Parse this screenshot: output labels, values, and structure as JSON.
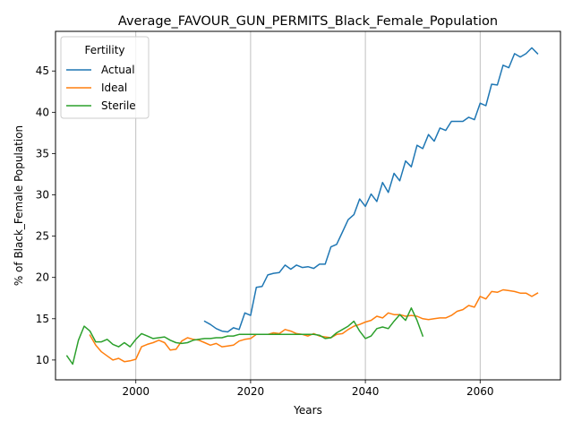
{
  "chart_data": {
    "type": "line",
    "title": "Average_FAVOUR_GUN_PERMITS_Black_Female_Population",
    "xlabel": "Years",
    "ylabel": "% of Black_Female Population",
    "xlim": [
      1986,
      2074
    ],
    "ylim": [
      7.6,
      49.8
    ],
    "xticks": [
      2000,
      2020,
      2040,
      2060
    ],
    "yticks": [
      10,
      15,
      20,
      25,
      30,
      35,
      40,
      45
    ],
    "grid": "vertical",
    "legend": {
      "title": "Fertility",
      "placement": "top-left"
    },
    "series": [
      {
        "name": "Actual",
        "color": "#1f77b4",
        "x": [
          2012,
          2013,
          2014,
          2015,
          2016,
          2017,
          2018,
          2019,
          2020,
          2021,
          2022,
          2023,
          2024,
          2025,
          2026,
          2027,
          2028,
          2029,
          2030,
          2031,
          2032,
          2033,
          2034,
          2035,
          2036,
          2037,
          2038,
          2039,
          2040,
          2041,
          2042,
          2043,
          2044,
          2045,
          2046,
          2047,
          2048,
          2049,
          2050,
          2051,
          2052,
          2053,
          2054,
          2055,
          2056,
          2057,
          2058,
          2059,
          2060,
          2061,
          2062,
          2063,
          2064,
          2065,
          2066,
          2067,
          2068,
          2069,
          2070
        ],
        "values": [
          14.7,
          14.3,
          13.8,
          13.5,
          13.4,
          13.9,
          13.7,
          15.7,
          15.4,
          18.8,
          18.9,
          20.3,
          20.5,
          20.6,
          21.5,
          21.0,
          21.5,
          21.2,
          21.3,
          21.1,
          21.6,
          21.6,
          23.7,
          24.0,
          25.5,
          27.0,
          27.6,
          29.5,
          28.6,
          30.1,
          29.2,
          31.5,
          30.3,
          32.6,
          31.7,
          34.1,
          33.4,
          36.0,
          35.6,
          37.3,
          36.5,
          38.1,
          37.8,
          38.9,
          38.9,
          38.9,
          39.4,
          39.1,
          41.1,
          40.8,
          43.4,
          43.3,
          45.7,
          45.4,
          47.1,
          46.7,
          47.1,
          47.8,
          47.1
        ]
      },
      {
        "name": "Ideal",
        "color": "#ff7f0e",
        "x": [
          1992,
          1993,
          1994,
          1995,
          1996,
          1997,
          1998,
          1999,
          2000,
          2001,
          2002,
          2003,
          2004,
          2005,
          2006,
          2007,
          2008,
          2009,
          2010,
          2011,
          2012,
          2013,
          2014,
          2015,
          2016,
          2017,
          2018,
          2019,
          2020,
          2021,
          2022,
          2023,
          2024,
          2025,
          2026,
          2027,
          2028,
          2029,
          2030,
          2031,
          2032,
          2033,
          2034,
          2035,
          2036,
          2037,
          2038,
          2039,
          2040,
          2041,
          2042,
          2043,
          2044,
          2045,
          2046,
          2047,
          2048,
          2049,
          2050,
          2051,
          2052,
          2053,
          2054,
          2055,
          2056,
          2057,
          2058,
          2059,
          2060,
          2061,
          2062,
          2063,
          2064,
          2065,
          2066,
          2067,
          2068,
          2069,
          2070
        ],
        "values": [
          13.0,
          11.8,
          11.0,
          10.5,
          10.0,
          10.2,
          9.8,
          9.9,
          10.1,
          11.6,
          11.9,
          12.1,
          12.4,
          12.1,
          11.2,
          11.3,
          12.3,
          12.7,
          12.5,
          12.4,
          12.1,
          11.8,
          12.0,
          11.6,
          11.7,
          11.8,
          12.3,
          12.5,
          12.6,
          13.1,
          13.1,
          13.1,
          13.3,
          13.2,
          13.7,
          13.5,
          13.2,
          13.1,
          12.9,
          13.2,
          12.9,
          12.8,
          12.7,
          13.1,
          13.2,
          13.7,
          14.1,
          14.3,
          14.6,
          14.8,
          15.3,
          15.1,
          15.7,
          15.5,
          15.5,
          15.3,
          15.4,
          15.3,
          15.0,
          14.9,
          15.0,
          15.1,
          15.1,
          15.4,
          15.9,
          16.1,
          16.6,
          16.4,
          17.7,
          17.4,
          18.3,
          18.2,
          18.5,
          18.4,
          18.3,
          18.1,
          18.1,
          17.7,
          18.1
        ]
      },
      {
        "name": "Sterile",
        "color": "#2ca02c",
        "x": [
          1988,
          1989,
          1990,
          1991,
          1992,
          1993,
          1994,
          1995,
          1996,
          1997,
          1998,
          1999,
          2000,
          2001,
          2002,
          2003,
          2004,
          2005,
          2006,
          2007,
          2008,
          2009,
          2010,
          2011,
          2012,
          2013,
          2014,
          2015,
          2016,
          2017,
          2018,
          2019,
          2020,
          2021,
          2022,
          2023,
          2024,
          2025,
          2026,
          2027,
          2028,
          2029,
          2030,
          2031,
          2032,
          2033,
          2034,
          2035,
          2036,
          2037,
          2038,
          2039,
          2040,
          2041,
          2042,
          2043,
          2044,
          2045,
          2046,
          2047,
          2048,
          2049,
          2050
        ],
        "values": [
          10.5,
          9.5,
          12.4,
          14.1,
          13.5,
          12.2,
          12.2,
          12.5,
          11.9,
          11.6,
          12.1,
          11.6,
          12.5,
          13.2,
          12.9,
          12.6,
          12.7,
          12.8,
          12.4,
          12.1,
          12.0,
          12.1,
          12.4,
          12.5,
          12.6,
          12.6,
          12.7,
          12.7,
          12.9,
          12.9,
          13.1,
          13.1,
          13.1,
          13.1,
          13.1,
          13.1,
          13.1,
          13.1,
          13.1,
          13.1,
          13.1,
          13.1,
          13.1,
          13.1,
          13.0,
          12.6,
          12.7,
          13.3,
          13.7,
          14.1,
          14.7,
          13.5,
          12.6,
          12.9,
          13.8,
          14.0,
          13.8,
          14.7,
          15.5,
          14.8,
          16.3,
          14.8,
          12.9
        ]
      }
    ]
  }
}
